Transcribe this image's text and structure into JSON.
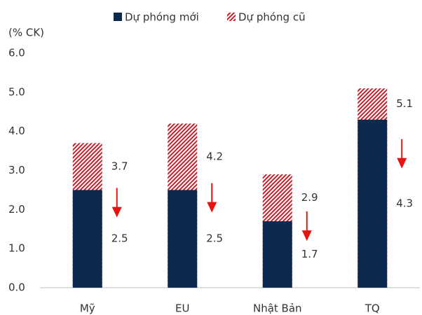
{
  "chart_data": {
    "type": "bar",
    "y_axis_label": "(% CK)",
    "categories": [
      "Mỹ",
      "EU",
      "Nhật Bản",
      "TQ"
    ],
    "series": [
      {
        "name": "Dự phóng mới",
        "color": "#0c2a4d",
        "values": [
          2.5,
          2.5,
          1.7,
          4.3
        ]
      },
      {
        "name": "Dự phóng cũ",
        "color": "#c4202b",
        "values": [
          3.7,
          4.2,
          2.9,
          5.1
        ]
      }
    ],
    "ylim": [
      0,
      6
    ],
    "yticks": [
      {
        "value": 0,
        "label": "0.0"
      },
      {
        "value": 1,
        "label": "1.0"
      },
      {
        "value": 2,
        "label": "2.0"
      },
      {
        "value": 3,
        "label": "3.0"
      },
      {
        "value": 4,
        "label": "4.0"
      },
      {
        "value": 5,
        "label": "5.0"
      },
      {
        "value": 6,
        "label": "6.0"
      }
    ],
    "grid": false,
    "legend": "top"
  }
}
